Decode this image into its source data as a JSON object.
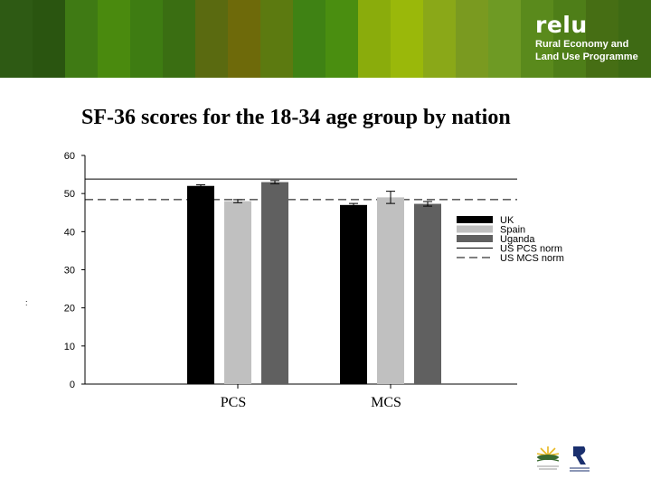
{
  "banner": {
    "stripe_colors": [
      "#2e5a14",
      "#2a5510",
      "#3f7a14",
      "#4a8a0e",
      "#3e7c12",
      "#3a6e12",
      "#5a6a10",
      "#6e6a0a",
      "#5c7a10",
      "#3f8214",
      "#4a8e10",
      "#8aac0c",
      "#9ab80a",
      "#8aa818",
      "#7a9a20",
      "#6e9a24",
      "#5a8a1c",
      "#4e7e18",
      "#466e14",
      "#3e6a14"
    ],
    "brand_name": "relu",
    "brand_line1": "Rural Economy and",
    "brand_line2": "Land Use Programme"
  },
  "title": "SF-36 scores for the 18-34 age group by nation",
  "stray_mark": ":",
  "chart_data": {
    "type": "bar",
    "categories": [
      "PCS",
      "MCS"
    ],
    "series": [
      {
        "name": "UK",
        "color": "#000000",
        "values": [
          52.0,
          47.0
        ],
        "errors": [
          0.3,
          0.4
        ]
      },
      {
        "name": "Spain",
        "color": "#c0c0c0",
        "values": [
          48.0,
          49.0
        ],
        "errors": [
          0.4,
          1.6
        ]
      },
      {
        "name": "Uganda",
        "color": "#606060",
        "values": [
          53.0,
          47.3
        ],
        "errors": [
          0.4,
          0.6
        ]
      }
    ],
    "reference_lines": [
      {
        "name": "US PCS norm",
        "value": 53.8,
        "style": "solid"
      },
      {
        "name": "US MCS norm",
        "value": 48.4,
        "style": "dashed"
      }
    ],
    "ylim": [
      0,
      60
    ],
    "yticks": [
      0,
      10,
      20,
      30,
      40,
      50,
      60
    ],
    "xlabel": "",
    "ylabel": "",
    "legend_position": "right",
    "grid": false
  }
}
